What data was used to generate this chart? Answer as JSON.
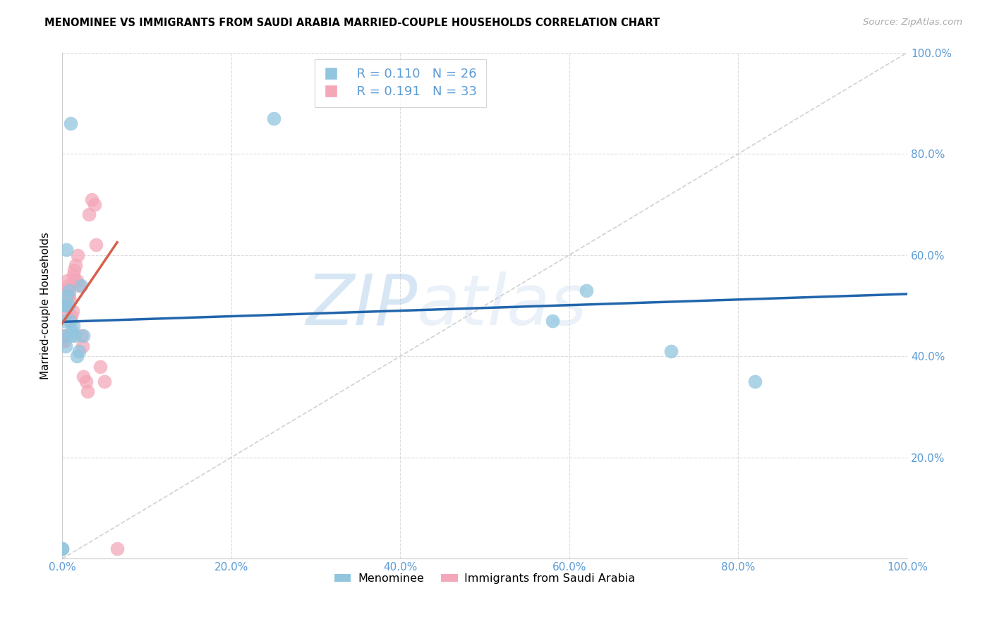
{
  "title": "MENOMINEE VS IMMIGRANTS FROM SAUDI ARABIA MARRIED-COUPLE HOUSEHOLDS CORRELATION CHART",
  "source": "Source: ZipAtlas.com",
  "ylabel": "Married-couple Households",
  "watermark_zip": "ZIP",
  "watermark_atlas": "atlas",
  "legend_r1": "R = 0.110",
  "legend_n1": "N = 26",
  "legend_r2": "R = 0.191",
  "legend_n2": "N = 33",
  "blue_color": "#92c5de",
  "pink_color": "#f4a7b9",
  "blue_line_color": "#2166ac",
  "pink_line_color": "#d6604d",
  "ref_line_color": "#cccccc",
  "tick_color": "#5b9bd5",
  "grid_color": "#d9d9d9",
  "menominee_x": [
    0.0,
    0.0,
    0.003,
    0.004,
    0.005,
    0.006,
    0.007,
    0.008,
    0.009,
    0.01,
    0.011,
    0.013,
    0.015,
    0.017,
    0.02,
    0.022,
    0.025,
    0.25,
    0.58,
    0.62,
    0.72,
    0.82,
    0.005,
    0.01,
    0.002,
    0.003
  ],
  "menominee_y": [
    0.02,
    0.02,
    0.44,
    0.42,
    0.5,
    0.52,
    0.5,
    0.53,
    0.47,
    0.44,
    0.45,
    0.46,
    0.44,
    0.4,
    0.41,
    0.54,
    0.44,
    0.87,
    0.47,
    0.53,
    0.41,
    0.35,
    0.61,
    0.86,
    0.5,
    0.47
  ],
  "saudi_x": [
    0.0,
    0.0,
    0.001,
    0.002,
    0.003,
    0.004,
    0.005,
    0.006,
    0.007,
    0.008,
    0.009,
    0.01,
    0.011,
    0.012,
    0.013,
    0.014,
    0.015,
    0.016,
    0.017,
    0.018,
    0.02,
    0.022,
    0.024,
    0.025,
    0.028,
    0.03,
    0.032,
    0.035,
    0.038,
    0.04,
    0.045,
    0.05,
    0.065
  ],
  "saudi_y": [
    0.44,
    0.43,
    0.44,
    0.43,
    0.5,
    0.53,
    0.48,
    0.55,
    0.54,
    0.52,
    0.51,
    0.47,
    0.48,
    0.49,
    0.56,
    0.57,
    0.55,
    0.58,
    0.55,
    0.6,
    0.54,
    0.44,
    0.42,
    0.36,
    0.35,
    0.33,
    0.68,
    0.71,
    0.7,
    0.62,
    0.38,
    0.35,
    0.02
  ],
  "blue_line_x0": 0.0,
  "blue_line_x1": 1.0,
  "blue_line_y0": 0.468,
  "blue_line_y1": 0.523,
  "pink_line_x0": 0.0,
  "pink_line_x1": 0.065,
  "pink_line_y0": 0.465,
  "pink_line_y1": 0.625,
  "xlim": [
    0.0,
    1.0
  ],
  "ylim": [
    0.0,
    1.0
  ],
  "xticks": [
    0.0,
    0.2,
    0.4,
    0.6,
    0.8,
    1.0
  ],
  "yticks": [
    0.0,
    0.2,
    0.4,
    0.6,
    0.8,
    1.0
  ],
  "xtick_labels": [
    "0.0%",
    "20.0%",
    "40.0%",
    "60.0%",
    "80.0%",
    "100.0%"
  ],
  "ytick_right_labels": [
    "",
    "20.0%",
    "40.0%",
    "60.0%",
    "80.0%",
    "100.0%"
  ]
}
